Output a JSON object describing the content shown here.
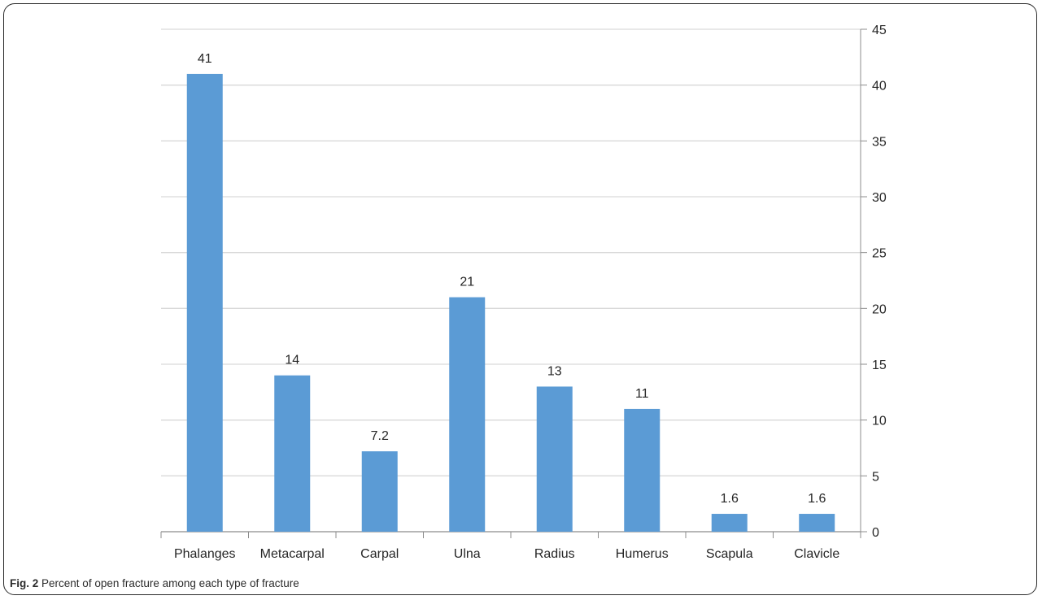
{
  "caption": {
    "label": "Fig. 2",
    "text": "Percent of open fracture among each type of fracture"
  },
  "colors": {
    "bar": "#5b9bd5",
    "grid": "#d9d9d9",
    "axis": "#8c8c8c",
    "text": "#262626"
  },
  "chart_data": {
    "type": "bar",
    "title": "",
    "xlabel": "",
    "ylabel": "",
    "categories": [
      "Phalanges",
      "Metacarpal",
      "Carpal",
      "Ulna",
      "Radius",
      "Humerus",
      "Scapula",
      "Clavicle"
    ],
    "values": [
      41,
      14,
      7.2,
      21,
      13,
      11,
      1.6,
      1.6
    ],
    "data_labels": [
      "41",
      "14",
      "7.2",
      "21",
      "13",
      "11",
      "1.6",
      "1.6"
    ],
    "ylim": [
      0,
      45
    ],
    "y_ticks": [
      0,
      5,
      10,
      15,
      20,
      25,
      30,
      35,
      40,
      45
    ],
    "y_axis_side": "right",
    "grid": true,
    "legend": "none"
  }
}
